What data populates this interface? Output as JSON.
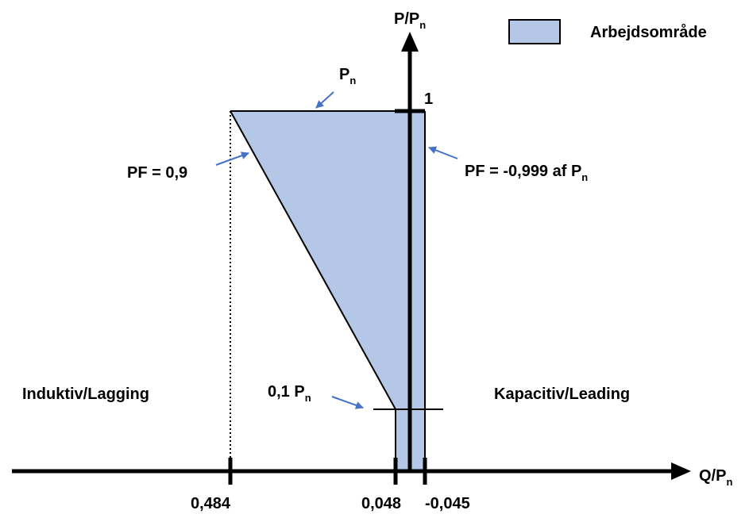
{
  "axes": {
    "y_label": "P/P",
    "y_label_sub": "n",
    "x_label": "Q/P",
    "x_label_sub": "n",
    "y_tick_label": "1"
  },
  "legend": {
    "label": "Arbejdsområde",
    "fill": "#b4c7e7"
  },
  "region": {
    "fill": "#b4c7e7"
  },
  "annotations": {
    "pn_top": {
      "text": "P",
      "sub": "n"
    },
    "pf_lag": {
      "text": "PF = 0,9"
    },
    "pf_lead": {
      "text": "PF = -0,999 af P",
      "sub": "n"
    },
    "min_power": {
      "text": "0,1 P",
      "sub": "n"
    },
    "arrow_color": "#4472c4"
  },
  "regions_text": {
    "inductive": "Induktiv/Lagging",
    "capacitive": "Kapacitiv/Leading"
  },
  "x_ticks": [
    "0,484",
    "0,048",
    "-0,045"
  ]
}
